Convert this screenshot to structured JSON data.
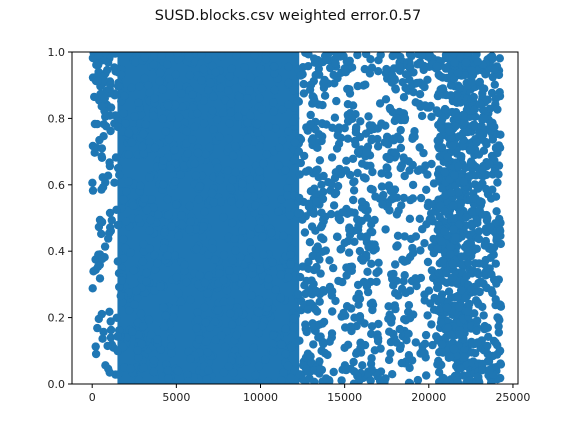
{
  "chart_data": {
    "type": "scatter",
    "title": "SUSD.blocks.csv weighted error.0.57",
    "xlabel": "",
    "ylabel": "",
    "xlim": [
      -1200,
      25300
    ],
    "ylim": [
      0.0,
      1.0
    ],
    "xticks": [
      0,
      5000,
      10000,
      15000,
      20000,
      25000
    ],
    "yticks": [
      0.0,
      0.2,
      0.4,
      0.6,
      0.8,
      1.0
    ],
    "xtick_labels": [
      "0",
      "5000",
      "10000",
      "15000",
      "20000",
      "25000"
    ],
    "ytick_labels": [
      "0.0",
      "0.2",
      "0.4",
      "0.6",
      "0.8",
      "1.0"
    ],
    "grid": false,
    "marker_color": "#1f77b4",
    "n_points_estimate": 24000,
    "density_profile": [
      {
        "x_range": [
          0,
          1000
        ],
        "description": "moderate density, concentrated near top (0.85-1.0)"
      },
      {
        "x_range": [
          1000,
          13000
        ],
        "description": "very dense, near-solid fill across 0-1 with small gaps"
      },
      {
        "x_range": [
          13000,
          19000
        ],
        "description": "medium density, scattered across 0-1"
      },
      {
        "x_range": [
          19000,
          20500
        ],
        "description": "sparser, scattered"
      },
      {
        "x_range": [
          20500,
          22800
        ],
        "description": "dense vertical band across 0-1"
      },
      {
        "x_range": [
          22800,
          24300
        ],
        "description": "medium density, scattered"
      }
    ]
  }
}
